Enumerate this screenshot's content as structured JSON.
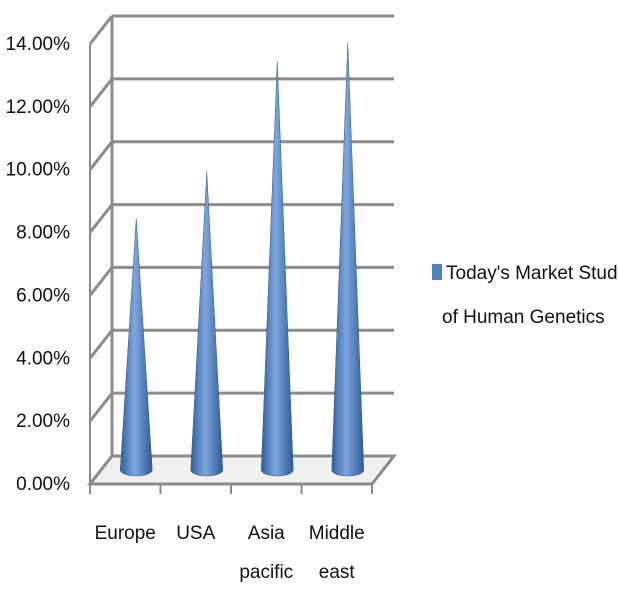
{
  "chart_data": {
    "type": "bar",
    "shape": "cone",
    "categories": [
      [
        "Europe"
      ],
      [
        "USA"
      ],
      [
        "Asia",
        "pacific"
      ],
      [
        "Middle",
        "east"
      ]
    ],
    "series": [
      {
        "name": [
          "Today's Market Study",
          "of  Human Genetics"
        ],
        "values": [
          8.0,
          9.5,
          13.0,
          13.6
        ],
        "color": "#4F81BD"
      }
    ],
    "ylim": [
      0,
      14
    ],
    "yticks": [
      "0.00%",
      "2.00%",
      "4.00%",
      "6.00%",
      "8.00%",
      "10.00%",
      "12.00%",
      "14.00%"
    ],
    "grid": true,
    "legend": "right",
    "colors": {
      "grid": "#8c8c8c",
      "floor": "#f0f0f0",
      "axis": "#8c8c8c"
    }
  }
}
